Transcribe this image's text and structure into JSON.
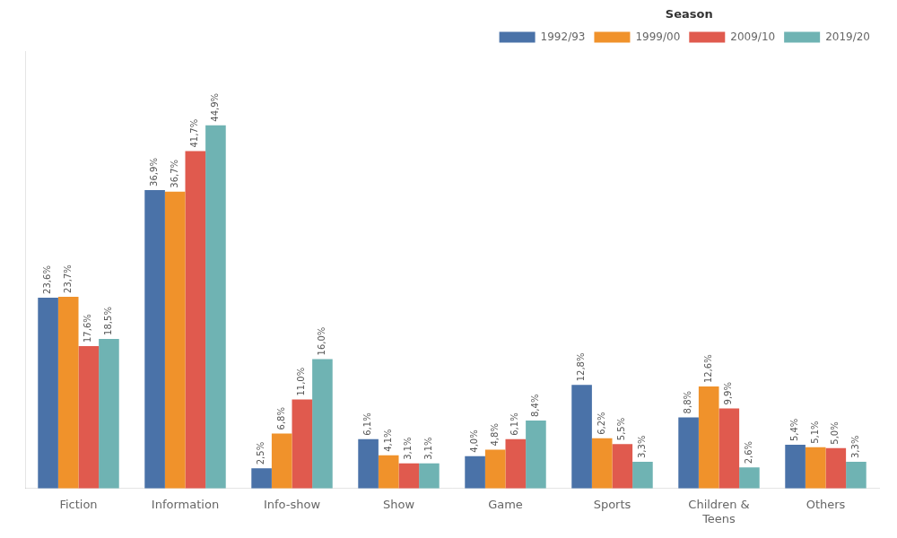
{
  "chart_data": {
    "type": "bar",
    "categories": [
      "Fiction",
      "Information",
      "Info-show",
      "Show",
      "Game",
      "Sports",
      "Children &\nTeens",
      "Others"
    ],
    "series": [
      {
        "name": "1992/93",
        "color": "#4a72a8",
        "values": [
          23.6,
          36.9,
          2.5,
          6.1,
          4.0,
          12.8,
          8.8,
          5.4
        ],
        "value_labels": [
          "23,6%",
          "36,9%",
          "2,5%",
          "6,1%",
          "4,0%",
          "12,8%",
          "8,8%",
          "5,4%"
        ]
      },
      {
        "name": "1999/00",
        "color": "#f0922b",
        "values": [
          23.7,
          36.7,
          6.8,
          4.1,
          4.8,
          6.2,
          12.6,
          5.1
        ],
        "value_labels": [
          "23,7%",
          "36,7%",
          "6,8%",
          "4,1%",
          "4,8%",
          "6,2%",
          "12,6%",
          "5,1%"
        ]
      },
      {
        "name": "2009/10",
        "color": "#e05a4e",
        "values": [
          17.6,
          41.7,
          11.0,
          3.1,
          6.1,
          5.5,
          9.9,
          5.0
        ],
        "value_labels": [
          "17,6%",
          "41,7%",
          "11,0%",
          "3,1%",
          "6,1%",
          "5,5%",
          "9,9%",
          "5,0%"
        ]
      },
      {
        "name": "2019/20",
        "color": "#6fb3b3",
        "values": [
          18.5,
          44.9,
          16.0,
          3.1,
          8.4,
          3.3,
          2.6,
          3.3
        ],
        "value_labels": [
          "18,5%",
          "44,9%",
          "16,0%",
          "3,1%",
          "8,4%",
          "3,3%",
          "2,6%",
          "3,3%"
        ]
      }
    ],
    "legend_title": "Season",
    "ylim": [
      0,
      54
    ],
    "yticks": [],
    "grid": false,
    "legend": "upper right",
    "data_labels": true,
    "tick_labels": "x"
  }
}
